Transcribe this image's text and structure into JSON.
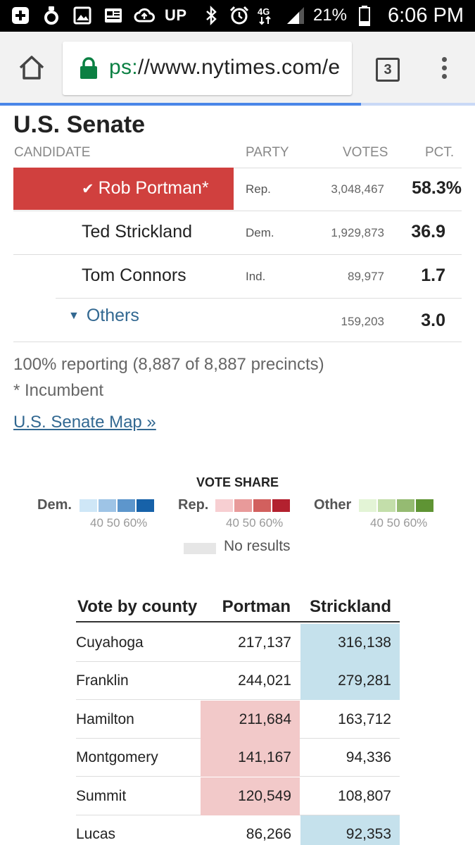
{
  "status_bar": {
    "up_label": "UP",
    "network": "4G LTE",
    "battery": "21%",
    "time": "6:06 PM"
  },
  "browser": {
    "url_scheme": "ps:",
    "url_rest": "//www.nytimes.com/e",
    "tab_count": "3",
    "load_progress": 0.76
  },
  "race": {
    "title": "U.S. Senate",
    "headers": {
      "candidate": "CANDIDATE",
      "party": "PARTY",
      "votes": "VOTES",
      "pct": "PCT."
    },
    "candidates": [
      {
        "name": "Rob Portman*",
        "party": "Rep.",
        "votes": "3,048,467",
        "pct": "58.3%",
        "winner": true
      },
      {
        "name": "Ted Strickland",
        "party": "Dem.",
        "votes": "1,929,873",
        "pct": "36.9"
      },
      {
        "name": "Tom Connors",
        "party": "Ind.",
        "votes": "89,977",
        "pct": "1.7"
      }
    ],
    "others": {
      "label": "Others",
      "votes": "159,203",
      "pct": "3.0"
    },
    "check_glyph": "✔",
    "triangle_glyph": "▼",
    "reporting": "100% reporting (8,887 of 8,887 precincts)",
    "incumbent_note": "* Incumbent",
    "map_link": "U.S. Senate Map »"
  },
  "legend": {
    "title": "VOTE SHARE",
    "dem_label": "Dem.",
    "rep_label": "Rep.",
    "other_label": "Other",
    "ticks": "40  50  60%",
    "no_results": "No results",
    "colors": {
      "dem": [
        "#cfe7f7",
        "#9ec4e6",
        "#5d96cc",
        "#1762a9"
      ],
      "rep": [
        "#f7cfd2",
        "#e89a9a",
        "#d2605e",
        "#b3212f"
      ],
      "other": [
        "#e3f4d6",
        "#c3deaa",
        "#95bb72",
        "#5f9434"
      ],
      "none": "#e6e6e6"
    }
  },
  "county_table": {
    "headers": {
      "county": "Vote by county",
      "portman": "Portman",
      "strickland": "Strickland"
    },
    "rows": [
      {
        "county": "Cuyahoga",
        "portman": "217,137",
        "strickland": "316,138",
        "leader": "dem"
      },
      {
        "county": "Franklin",
        "portman": "244,021",
        "strickland": "279,281",
        "leader": "dem"
      },
      {
        "county": "Hamilton",
        "portman": "211,684",
        "strickland": "163,712",
        "leader": "rep"
      },
      {
        "county": "Montgomery",
        "portman": "141,167",
        "strickland": "94,336",
        "leader": "rep"
      },
      {
        "county": "Summit",
        "portman": "120,549",
        "strickland": "108,807",
        "leader": "rep"
      },
      {
        "county": "Lucas",
        "portman": "86,266",
        "strickland": "92,353",
        "leader": "dem"
      }
    ]
  }
}
